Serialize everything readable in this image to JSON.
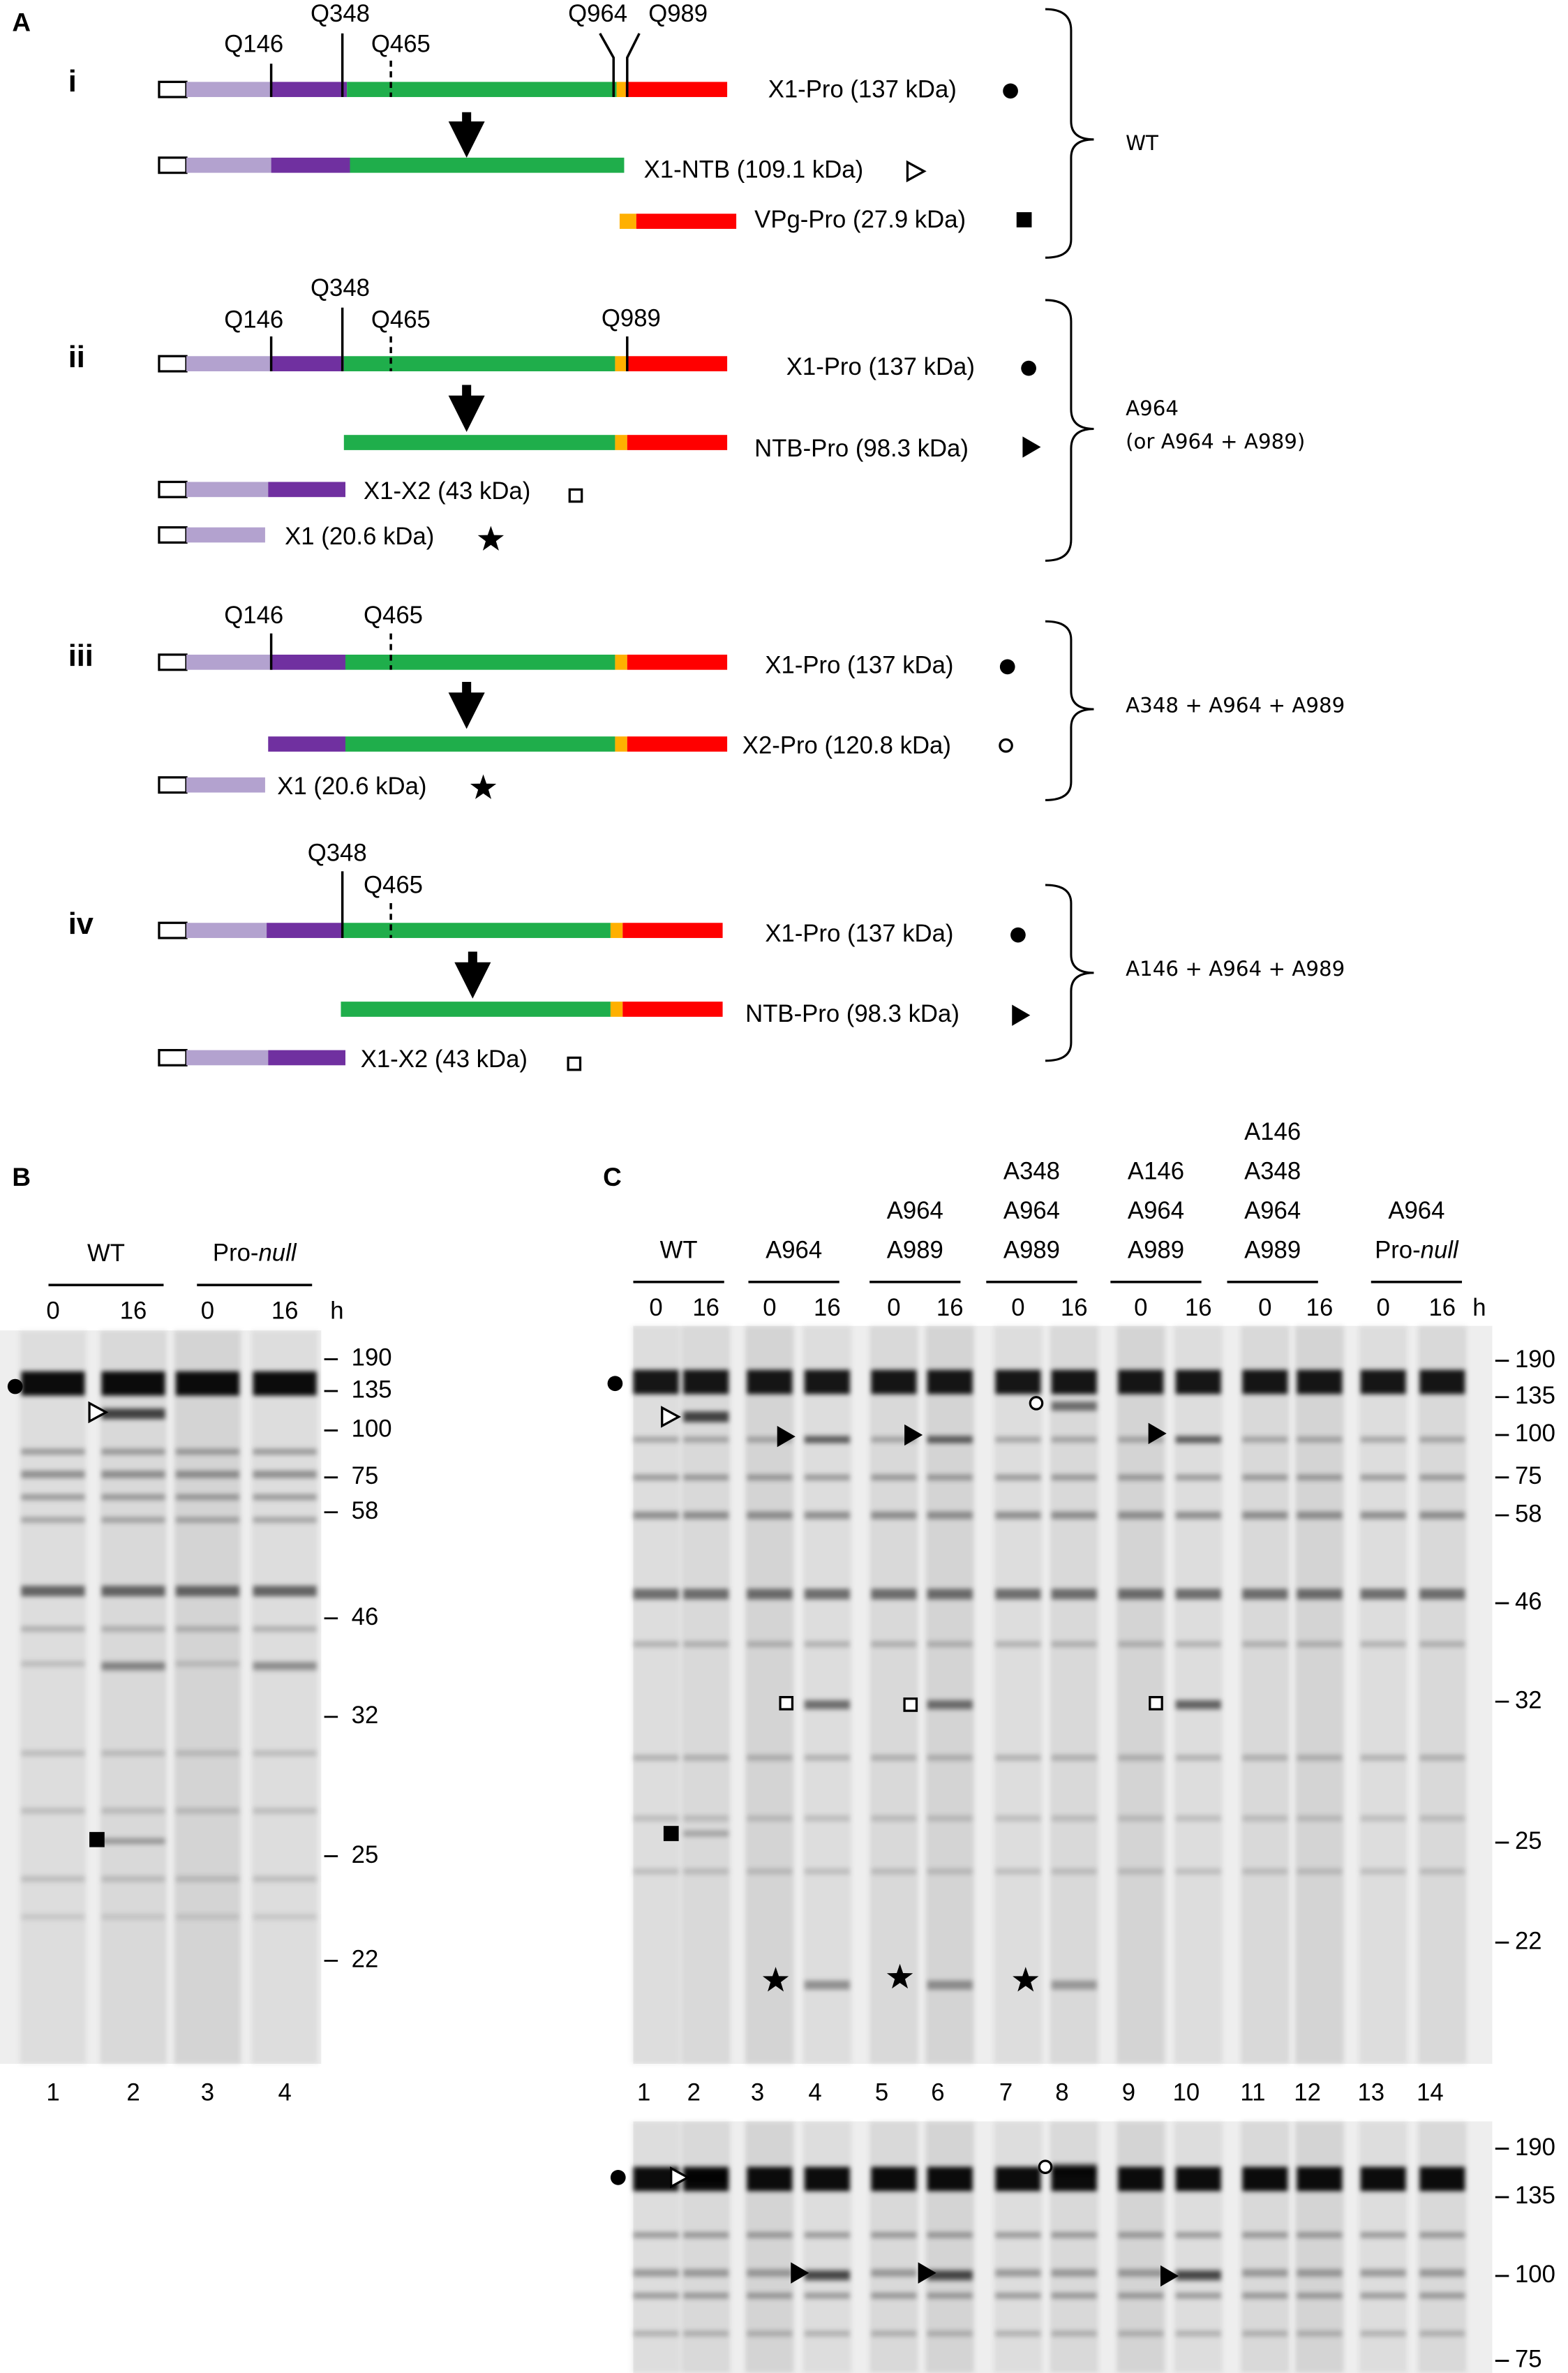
{
  "panel_a": {
    "label": "A",
    "constructs": [
      {
        "numeral": "i",
        "sites": [
          "Q146",
          "Q348",
          "Q465",
          "Q964",
          "Q989"
        ],
        "products": [
          "X1-Pro (137 kDa)",
          "X1-NTB (109.1 kDa)",
          "VPg-Pro (27.9 kDa)"
        ],
        "mutations": [
          "WT"
        ]
      },
      {
        "numeral": "ii",
        "sites": [
          "Q146",
          "Q348",
          "Q465",
          "Q989"
        ],
        "products": [
          "X1-Pro (137 kDa)",
          "NTB-Pro (98.3 kDa)",
          "X1-X2 (43 kDa)",
          "X1 (20.6 kDa)"
        ],
        "mutations": [
          "A964",
          "(or A964 + A989)"
        ]
      },
      {
        "numeral": "iii",
        "sites": [
          "Q146",
          "Q465"
        ],
        "products": [
          "X1-Pro (137 kDa)",
          "X2-Pro (120.8 kDa)",
          "X1 (20.6 kDa)"
        ],
        "mutations": [
          "A348 + A964 + A989"
        ]
      },
      {
        "numeral": "iv",
        "sites": [
          "Q348",
          "Q465"
        ],
        "products": [
          "X1-Pro (137 kDa)",
          "NTB-Pro (98.3 kDa)",
          "X1-X2 (43 kDa)"
        ],
        "mutations": [
          "A146 + A964 + A989"
        ]
      }
    ]
  },
  "panel_b": {
    "label": "B",
    "groups": [
      [
        "WT"
      ],
      [
        [
          "Pro-",
          "null"
        ]
      ]
    ],
    "times": [
      "0",
      "16",
      "0",
      "16"
    ],
    "time_unit": "h",
    "lanes": [
      "1",
      "2",
      "3",
      "4"
    ],
    "markers": [
      "190",
      "135",
      "100",
      "75",
      "58",
      "46",
      "32",
      "25",
      "22"
    ]
  },
  "panel_c": {
    "label": "C",
    "groups": [
      [
        "WT"
      ],
      [
        "A964"
      ],
      [
        "A964",
        "A989"
      ],
      [
        "A348",
        "A964",
        "A989"
      ],
      [
        "A146",
        "A964",
        "A989"
      ],
      [
        "A146",
        "A348",
        "A964",
        "A989"
      ],
      [
        "A964",
        [
          "Pro-",
          "null"
        ]
      ]
    ],
    "times": [
      "0",
      "16",
      "0",
      "16",
      "0",
      "16",
      "0",
      "16",
      "0",
      "16",
      "0",
      "16",
      "0",
      "16"
    ],
    "time_unit": "h",
    "lanes": [
      "1",
      "2",
      "3",
      "4",
      "5",
      "6",
      "7",
      "8",
      "9",
      "10",
      "11",
      "12",
      "13",
      "14"
    ],
    "markers": [
      "190",
      "135",
      "100",
      "75",
      "58",
      "46",
      "32",
      "25",
      "22"
    ],
    "lower_markers": [
      "190",
      "135",
      "100",
      "75"
    ]
  }
}
